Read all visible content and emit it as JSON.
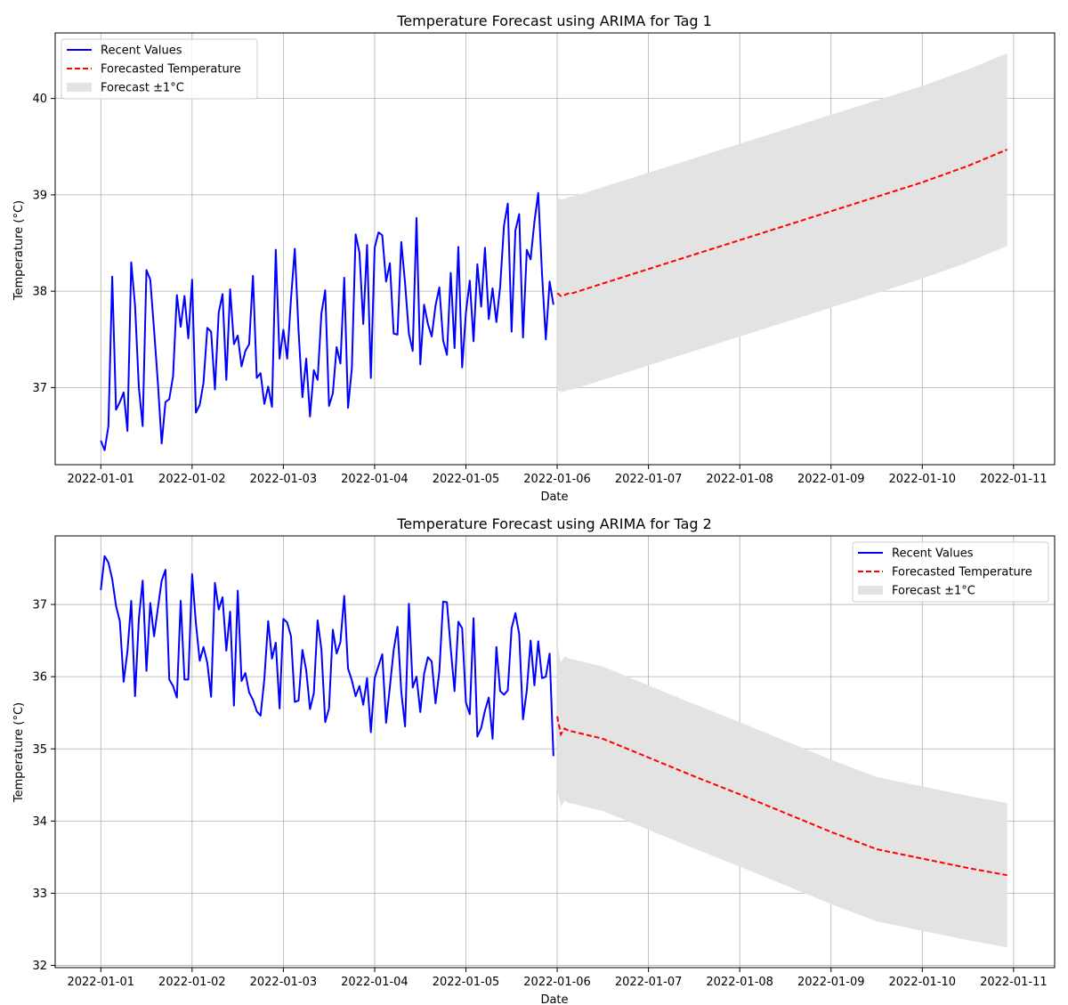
{
  "chart_data": [
    {
      "type": "line",
      "title": "Temperature Forecast using ARIMA for Tag 1",
      "xlabel": "Date",
      "ylabel": "Temperature (°C)",
      "x_ticks": [
        "2022-01-01",
        "2022-01-02",
        "2022-01-03",
        "2022-01-04",
        "2022-01-05",
        "2022-01-06",
        "2022-01-07",
        "2022-01-08",
        "2022-01-09",
        "2022-01-10",
        "2022-01-11"
      ],
      "y_ticks": [
        "37",
        "38",
        "39",
        "40"
      ],
      "xlim": [
        -0.5,
        10.45
      ],
      "ylim": [
        36.2,
        40.68
      ],
      "grid": true,
      "legend": {
        "placement": "upper left",
        "entries": [
          {
            "label": "Recent Values",
            "style": "line",
            "color": "#0000ff"
          },
          {
            "label": "Forecasted Temperature",
            "style": "dashed",
            "color": "#ff0000"
          },
          {
            "label": "Forecast ±1°C",
            "style": "patch",
            "color": "#e3e3e3"
          }
        ]
      },
      "series": [
        {
          "name": "Recent Values",
          "color": "#0000ff",
          "x_start": 0,
          "x_step": 0.04167,
          "values": [
            36.45,
            36.35,
            36.6,
            38.15,
            36.77,
            36.85,
            36.95,
            36.55,
            38.3,
            37.85,
            37.0,
            36.6,
            38.22,
            38.12,
            37.6,
            37.05,
            36.42,
            36.85,
            36.88,
            37.12,
            37.96,
            37.63,
            37.95,
            37.51,
            38.12,
            36.74,
            36.82,
            37.05,
            37.62,
            37.58,
            36.98,
            37.78,
            37.97,
            37.08,
            38.02,
            37.45,
            37.54,
            37.22,
            37.38,
            37.45,
            38.16,
            37.1,
            37.15,
            36.83,
            37.01,
            36.8,
            38.43,
            37.3,
            37.6,
            37.3,
            37.92,
            38.44,
            37.58,
            36.9,
            37.3,
            36.7,
            37.18,
            37.08,
            37.77,
            38.01,
            36.81,
            36.94,
            37.42,
            37.25,
            38.14,
            36.79,
            37.2,
            38.59,
            38.4,
            37.66,
            38.48,
            37.1,
            38.45,
            38.61,
            38.58,
            38.1,
            38.29,
            37.56,
            37.55,
            38.51,
            38.08,
            37.56,
            37.38,
            38.76,
            37.24,
            37.86,
            37.66,
            37.53,
            37.85,
            38.04,
            37.49,
            37.34,
            38.19,
            37.41,
            38.46,
            37.21,
            37.78,
            38.11,
            37.48,
            38.28,
            37.84,
            38.45,
            37.71,
            38.03,
            37.68,
            38.05,
            38.68,
            38.91,
            37.58,
            38.63,
            38.8,
            37.52,
            38.43,
            38.33,
            38.72,
            39.02,
            38.18,
            37.5,
            38.1,
            37.86
          ]
        },
        {
          "name": "Forecasted Temperature",
          "color": "#ff0000",
          "dashed": true,
          "x": [
            0.0,
            0.04,
            0.08,
            0.13,
            0.17,
            0.5,
            1,
            1.5,
            2,
            2.5,
            3,
            3.5,
            4,
            4.5,
            4.93
          ],
          "values": [
            37.98,
            37.95,
            37.96,
            37.98,
            37.98,
            38.08,
            38.23,
            38.38,
            38.53,
            38.68,
            38.83,
            38.98,
            39.13,
            39.3,
            39.47
          ],
          "x_offset": 5
        }
      ],
      "band": {
        "label": "Forecast ±1°C",
        "color": "#e3e3e3",
        "offset": 1.0
      }
    },
    {
      "type": "line",
      "title": "Temperature Forecast using ARIMA for Tag 2",
      "xlabel": "Date",
      "ylabel": "Temperature (°C)",
      "x_ticks": [
        "2022-01-01",
        "2022-01-02",
        "2022-01-03",
        "2022-01-04",
        "2022-01-05",
        "2022-01-06",
        "2022-01-07",
        "2022-01-08",
        "2022-01-09",
        "2022-01-10",
        "2022-01-11"
      ],
      "y_ticks": [
        "32",
        "33",
        "34",
        "35",
        "36",
        "37"
      ],
      "xlim": [
        -0.5,
        10.45
      ],
      "ylim": [
        31.97,
        37.95
      ],
      "grid": true,
      "legend": {
        "placement": "upper right",
        "entries": [
          {
            "label": "Recent Values",
            "style": "line",
            "color": "#0000ff"
          },
          {
            "label": "Forecasted Temperature",
            "style": "dashed",
            "color": "#ff0000"
          },
          {
            "label": "Forecast ±1°C",
            "style": "patch",
            "color": "#e3e3e3"
          }
        ]
      },
      "series": [
        {
          "name": "Recent Values",
          "color": "#0000ff",
          "x_start": 0,
          "x_step": 0.04167,
          "values": [
            37.2,
            37.67,
            37.58,
            37.35,
            36.98,
            36.77,
            35.93,
            36.35,
            37.05,
            35.73,
            36.8,
            37.33,
            36.08,
            37.02,
            36.56,
            36.95,
            37.33,
            37.48,
            35.96,
            35.87,
            35.71,
            37.05,
            35.96,
            35.96,
            37.42,
            36.74,
            36.22,
            36.41,
            36.19,
            35.72,
            37.3,
            36.93,
            37.1,
            36.36,
            36.9,
            35.6,
            37.19,
            35.94,
            36.05,
            35.78,
            35.68,
            35.52,
            35.46,
            35.97,
            36.77,
            36.25,
            36.47,
            35.56,
            36.8,
            36.75,
            36.56,
            35.65,
            35.67,
            36.37,
            36.09,
            35.55,
            35.77,
            36.78,
            36.38,
            35.37,
            35.56,
            36.65,
            36.32,
            36.48,
            37.12,
            36.11,
            35.95,
            35.73,
            35.87,
            35.61,
            35.98,
            35.23,
            35.98,
            36.15,
            36.31,
            35.36,
            35.86,
            36.37,
            36.69,
            35.79,
            35.31,
            37.01,
            35.85,
            36.0,
            35.51,
            36.04,
            36.27,
            36.21,
            35.63,
            36.07,
            37.04,
            37.03,
            36.39,
            35.8,
            36.76,
            36.67,
            35.64,
            35.48,
            36.81,
            35.17,
            35.29,
            35.53,
            35.71,
            35.14,
            36.41,
            35.8,
            35.75,
            35.81,
            36.67,
            36.88,
            36.59,
            35.41,
            35.81,
            36.5,
            35.88,
            36.49,
            35.98,
            36.0,
            36.32,
            34.9
          ]
        },
        {
          "name": "Forecasted Temperature",
          "color": "#ff0000",
          "dashed": true,
          "x": [
            0.0,
            0.04,
            0.08,
            0.13,
            0.17,
            0.5,
            1,
            1.5,
            2,
            2.5,
            3,
            3.5,
            4,
            4.5,
            4.93
          ],
          "values": [
            35.45,
            35.2,
            35.28,
            35.25,
            35.24,
            35.14,
            34.88,
            34.62,
            34.37,
            34.11,
            33.85,
            33.61,
            33.48,
            33.35,
            33.25
          ],
          "x_offset": 5
        }
      ],
      "band": {
        "label": "Forecast ±1°C",
        "color": "#e3e3e3",
        "offset": 1.0
      }
    }
  ]
}
